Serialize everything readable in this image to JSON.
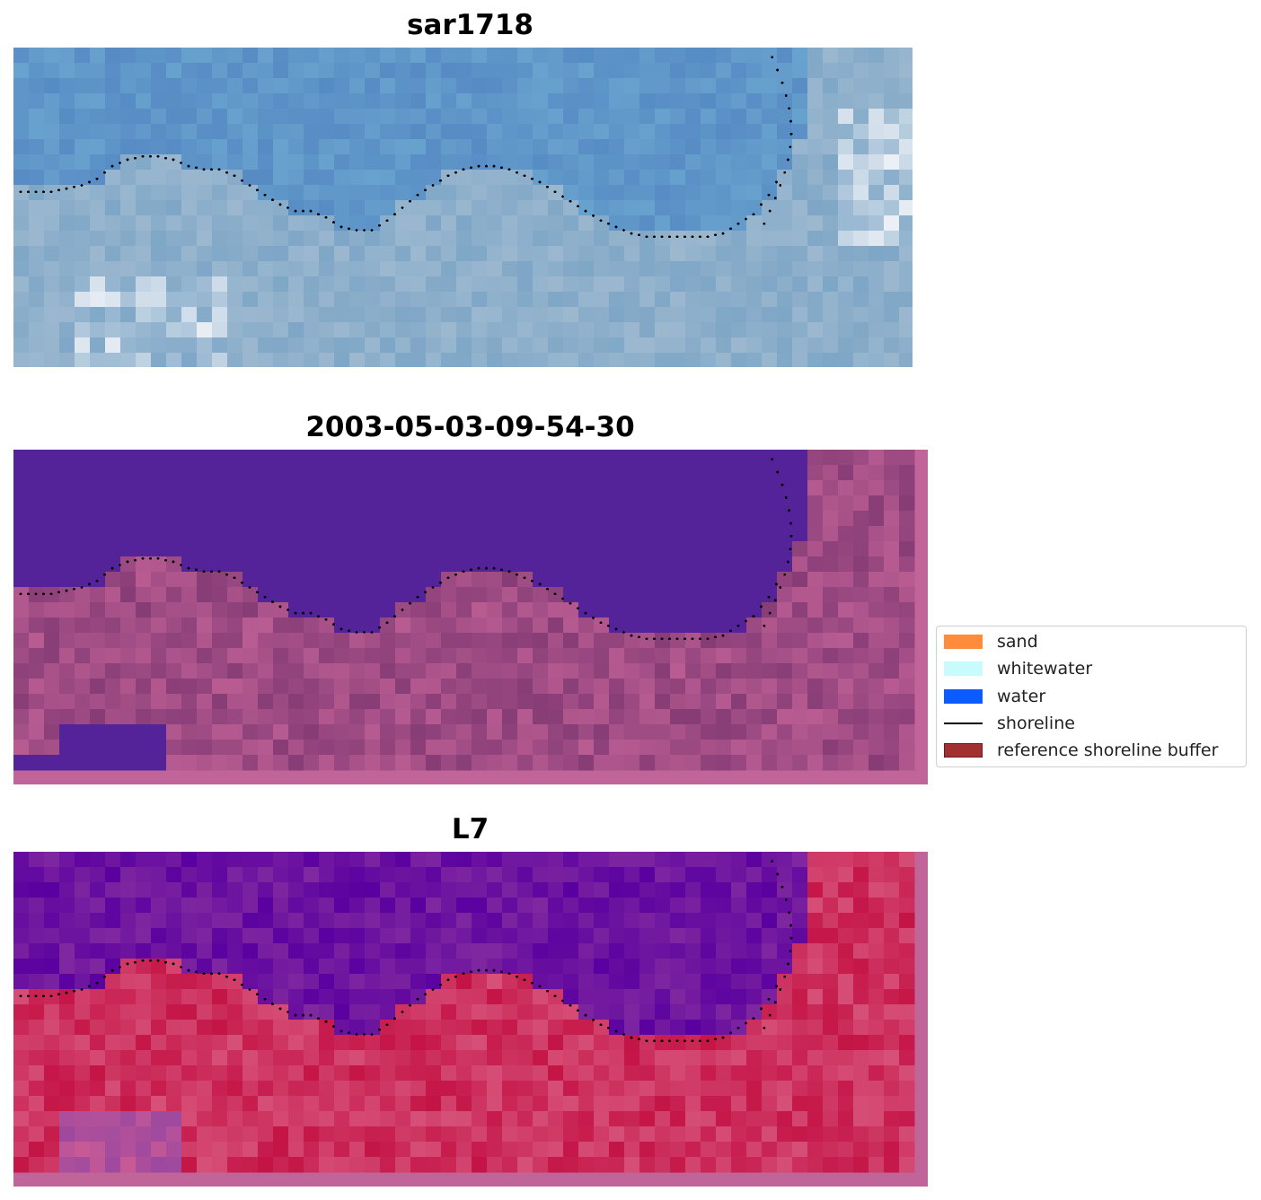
{
  "panels": [
    {
      "title": "sar1718",
      "kind": "rgb"
    },
    {
      "title": "2003-05-03-09-54-30",
      "kind": "classification"
    },
    {
      "title": "L7",
      "kind": "ndwi"
    }
  ],
  "legend": {
    "items": [
      {
        "label": "sand",
        "color": "#ff8c3a",
        "type": "patch"
      },
      {
        "label": "whitewater",
        "color": "#c8fbfb",
        "type": "patch"
      },
      {
        "label": "water",
        "color": "#0a5cff",
        "type": "patch"
      },
      {
        "label": "shoreline",
        "color": "#000000",
        "type": "line"
      },
      {
        "label": "reference shoreline buffer",
        "color": "#a33030",
        "type": "patch"
      }
    ]
  },
  "colors": {
    "water_class": "#54239a",
    "buffer_overlay": "#c0649a",
    "shoreline": "#000000"
  }
}
